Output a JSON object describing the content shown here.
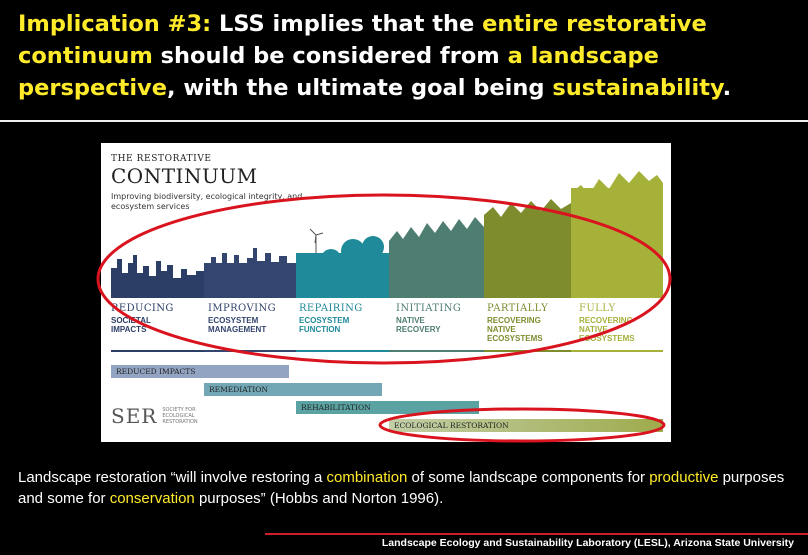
{
  "slide": {
    "title": {
      "prefix": "Implication #3:",
      "t1": " LSS implies that the ",
      "h1": "entire restorative continuum",
      "t2": " should be considered from ",
      "h2": "a landscape perspective",
      "t3": ", with the ultimate goal being ",
      "h3": "sustainability",
      "t4": "."
    },
    "figure": {
      "kicker": "THE RESTORATIVE",
      "heading": "CONTINUUM",
      "subtitle": "Improving biodiversity, ecological integrity, and ecosystem services",
      "stages": [
        {
          "head": "REDUCING",
          "desc": "SOCIETAL\nIMPACTS",
          "color": "#2c3e66"
        },
        {
          "head": "IMPROVING",
          "desc": "ECOSYSTEM\nMANAGEMENT",
          "color": "#34456f"
        },
        {
          "head": "REPAIRING",
          "desc": "ECOSYSTEM\nFUNCTION",
          "color": "#1f8a99"
        },
        {
          "head": "INITIATING",
          "desc": "NATIVE\nRECOVERY",
          "color": "#4e7d72"
        },
        {
          "head": "PARTIALLY",
          "desc": "RECOVERING\nNATIVE\nECOSYSTEMS",
          "color": "#7e8c2e"
        },
        {
          "head": "FULLY",
          "desc": "RECOVERING\nNATIVE\nECOSYSTEMS",
          "color": "#a6b13a"
        }
      ],
      "bars": [
        "REDUCED IMPACTS",
        "REMEDIATION",
        "REHABILITATION",
        "ECOLOGICAL RESTORATION"
      ],
      "logo": {
        "mark": "SER",
        "text": "SOCIETY FOR\nECOLOGICAL\nRESTORATION"
      }
    },
    "quote": {
      "t1": "Landscape restoration “will involve restoring a ",
      "h1": "combination",
      "t2": " of some landscape components for ",
      "h2": "productive",
      "t3": " purposes and some for ",
      "h3": "conservation",
      "t4": " purposes” (Hobbs and Norton 1996)."
    },
    "footer": "Landscape Ecology and Sustainability Laboratory (LESL), Arizona State University",
    "colors": {
      "highlight": "#ffeb2a",
      "annotation_red": "#d9141e",
      "background": "#000000"
    }
  }
}
